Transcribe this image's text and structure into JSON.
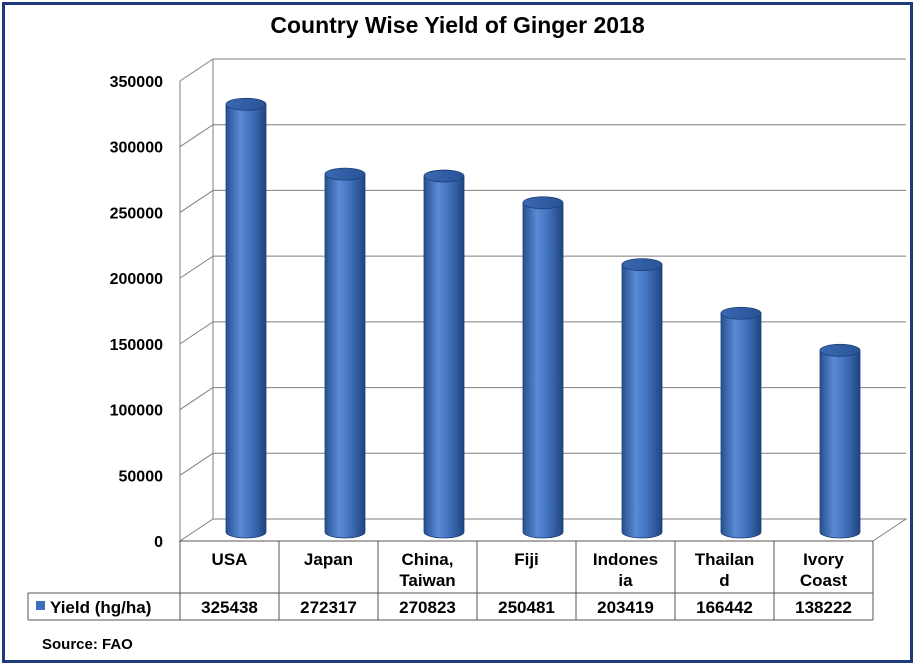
{
  "chart_data": {
    "type": "bar",
    "title": "Country Wise Yield of Ginger 2018",
    "categories": [
      [
        "USA"
      ],
      [
        "Japan"
      ],
      [
        "China,",
        "Taiwan"
      ],
      [
        "Fiji"
      ],
      [
        "Indones",
        "ia"
      ],
      [
        "Thailan",
        "d"
      ],
      [
        "Ivory",
        "Coast"
      ]
    ],
    "series": [
      {
        "name": "Yield (hg/ha)",
        "values": [
          325438,
          272317,
          270823,
          250481,
          203419,
          166442,
          138222
        ],
        "color": "#3f6fba"
      }
    ],
    "y_ticks": [
      "0",
      "50000",
      "100000",
      "150000",
      "200000",
      "250000",
      "300000",
      "350000"
    ],
    "ylim": [
      0,
      350000
    ],
    "grid": true,
    "legend": "data-table-bottom",
    "source": "Source: FAO"
  }
}
